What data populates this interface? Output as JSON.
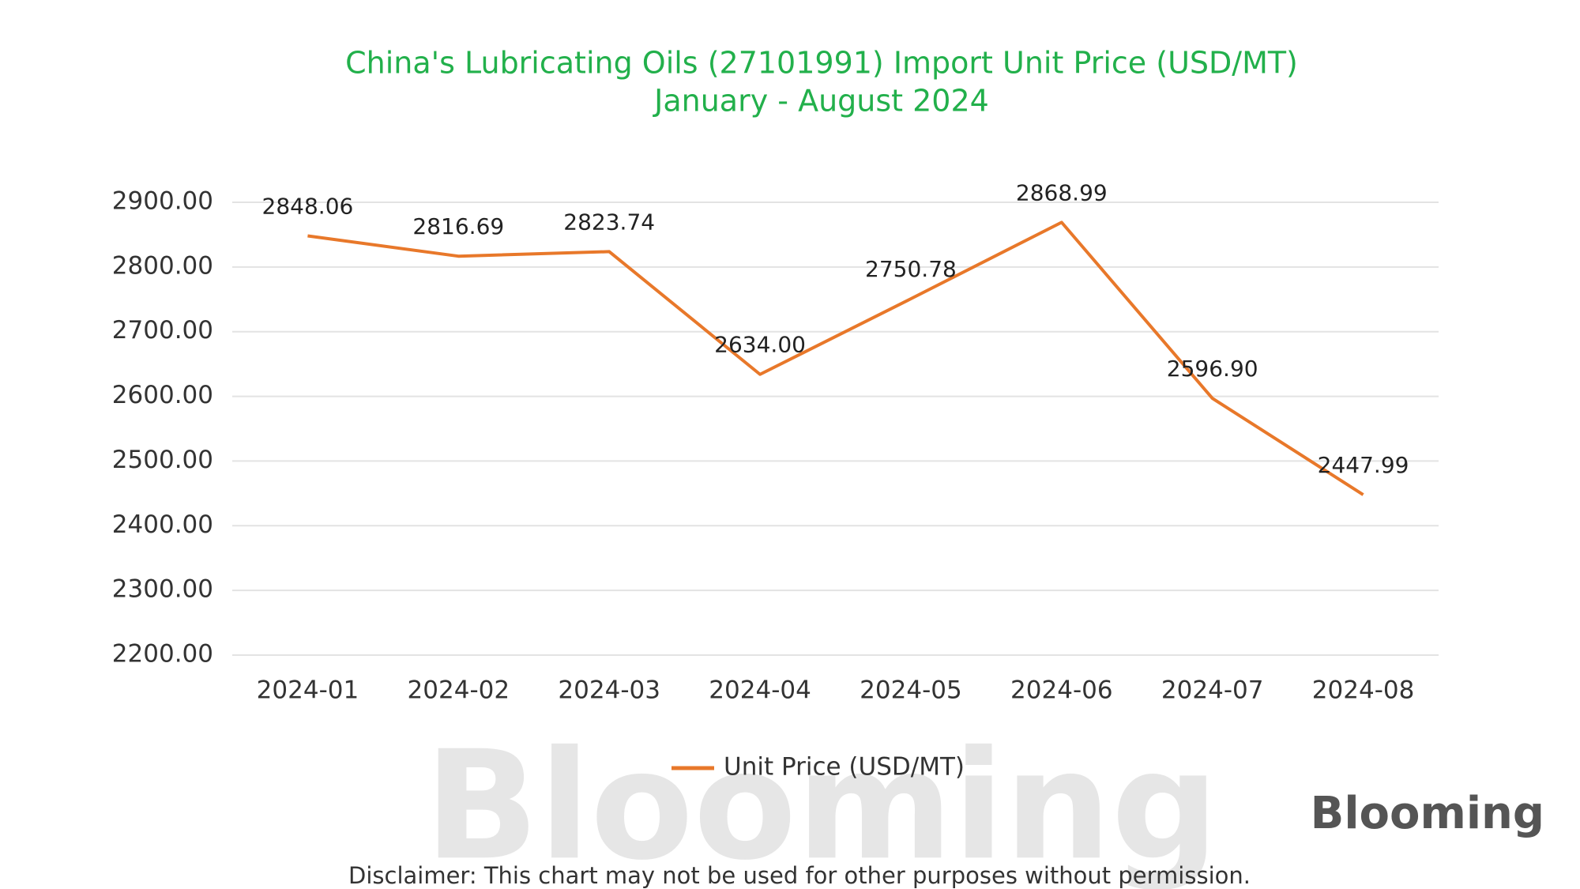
{
  "chart_data": {
    "type": "line",
    "title": "China's Lubricating Oils (27101991) Import Unit Price (USD/MT)",
    "subtitle": "January - August 2024",
    "categories": [
      "2024-01",
      "2024-02",
      "2024-03",
      "2024-04",
      "2024-05",
      "2024-06",
      "2024-07",
      "2024-08"
    ],
    "series": [
      {
        "name": "Unit Price (USD/MT)",
        "color": "#e8782a",
        "values": [
          2848.06,
          2816.69,
          2823.74,
          2634,
          2750.78,
          2868.99,
          2596.9,
          2447.99
        ],
        "value_labels": [
          "2848.06",
          "2816.69",
          "2823.74",
          "2634.00",
          "2750.78",
          "2868.99",
          "2596.90",
          "2447.99"
        ]
      }
    ],
    "ylim": [
      2200,
      2900
    ],
    "yticks": [
      {
        "value": 2200,
        "label": "2200.00"
      },
      {
        "value": 2300,
        "label": "2300.00"
      },
      {
        "value": 2400,
        "label": "2400.00"
      },
      {
        "value": 2500,
        "label": "2500.00"
      },
      {
        "value": 2600,
        "label": "2600.00"
      },
      {
        "value": 2700,
        "label": "2700.00"
      },
      {
        "value": 2800,
        "label": "2800.00"
      },
      {
        "value": 2900,
        "label": "2900.00"
      }
    ],
    "grid": true,
    "legend": "bottom",
    "watermark": "Blooming",
    "logo": "Blooming",
    "disclaimer": "Disclaimer: This chart may not be used for other purposes without permission."
  }
}
